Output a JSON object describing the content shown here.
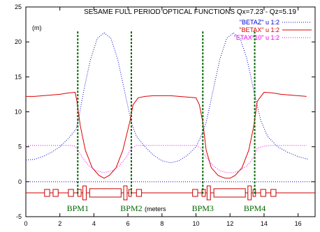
{
  "chart_data": {
    "type": "line",
    "title": "SESAME FULL PERIOD OPTICAL FUNCTIONS Qx=7.23 - Qz=5.19",
    "ylabel": "(m)",
    "xlabel": "(meters",
    "xlim": [
      0,
      17
    ],
    "ylim": [
      -5,
      25
    ],
    "x_ticks": [
      0,
      2,
      4,
      6,
      8,
      10,
      12,
      14,
      16
    ],
    "y_ticks": [
      -5,
      0,
      5,
      10,
      15,
      20,
      25
    ],
    "grid": false,
    "legend_position": "top-right",
    "series": [
      {
        "name": "\"BETAZ\" u 1:2",
        "color": "#0000cc",
        "style": "dotted",
        "x": [
          0,
          0.5,
          1.0,
          1.5,
          2.0,
          2.5,
          2.95,
          3.1,
          3.4,
          3.8,
          4.2,
          4.6,
          5.0,
          5.4,
          5.8,
          6.2,
          6.5,
          7.0,
          7.5,
          8.0,
          8.5,
          9.0,
          9.5,
          10.0,
          10.3,
          10.6,
          11.0,
          11.4,
          11.8,
          12.2,
          12.6,
          13.0,
          13.4,
          13.8,
          14.2,
          14.8,
          15.4,
          16.0,
          16.6
        ],
        "y": [
          3.1,
          3.2,
          3.6,
          4.2,
          5.0,
          6.2,
          7.5,
          9.0,
          13.0,
          17.5,
          20.5,
          21.3,
          20.5,
          17.5,
          13.0,
          8.5,
          6.5,
          5.0,
          3.8,
          3.0,
          2.7,
          3.0,
          3.8,
          5.0,
          6.5,
          8.5,
          13.0,
          17.5,
          20.5,
          21.3,
          20.5,
          17.5,
          13.0,
          8.8,
          6.5,
          5.0,
          4.2,
          3.6,
          3.2
        ]
      },
      {
        "name": "\"BETAX\" u 1:2",
        "color": "#dd0000",
        "style": "solid",
        "x": [
          0,
          0.5,
          1.0,
          1.5,
          2.0,
          2.5,
          2.9,
          3.0,
          3.2,
          3.5,
          3.9,
          4.3,
          4.6,
          4.9,
          5.3,
          5.7,
          6.1,
          6.3,
          6.6,
          7.0,
          7.5,
          8.0,
          8.5,
          9.0,
          9.5,
          10.0,
          10.2,
          10.4,
          10.6,
          10.9,
          11.3,
          11.7,
          12.0,
          12.3,
          12.7,
          13.1,
          13.4,
          13.6,
          14.0,
          14.5,
          15.0,
          15.5,
          16.0,
          16.5
        ],
        "y": [
          12.2,
          12.2,
          12.3,
          12.4,
          12.5,
          12.7,
          12.8,
          11.5,
          8.0,
          4.5,
          2.0,
          0.9,
          0.5,
          0.9,
          2.0,
          4.5,
          8.5,
          11.0,
          12.0,
          12.2,
          12.3,
          12.3,
          12.3,
          12.2,
          12.1,
          12.0,
          11.0,
          8.5,
          4.5,
          2.0,
          0.9,
          0.5,
          0.5,
          0.9,
          2.0,
          4.5,
          8.0,
          11.5,
          12.8,
          12.7,
          12.5,
          12.4,
          12.3,
          12.2
        ]
      },
      {
        "name": "\"ETAX*10\" u 1:2",
        "color": "#ee00ee",
        "style": "dotted",
        "x": [
          0,
          0.5,
          1.0,
          1.5,
          2.0,
          2.5,
          2.9,
          3.0,
          3.3,
          3.7,
          4.1,
          4.6,
          5.1,
          5.5,
          5.9,
          6.2,
          6.5,
          7.0,
          7.5,
          8.0,
          8.5,
          9.0,
          9.5,
          10.0,
          10.3,
          10.6,
          11.0,
          11.4,
          11.8,
          12.2,
          12.6,
          13.0,
          13.4,
          13.6,
          14.0,
          14.5,
          15.0,
          15.5,
          16.0,
          16.5
        ],
        "y": [
          5.2,
          5.2,
          5.2,
          5.2,
          5.2,
          5.2,
          5.1,
          4.8,
          3.5,
          2.3,
          1.6,
          1.3,
          1.6,
          2.3,
          3.5,
          4.8,
          5.2,
          5.2,
          5.2,
          5.2,
          5.2,
          5.2,
          5.2,
          5.2,
          4.8,
          3.5,
          2.3,
          1.6,
          1.3,
          1.3,
          1.6,
          2.3,
          3.5,
          4.8,
          5.1,
          5.2,
          5.2,
          5.2,
          5.2,
          5.2
        ]
      }
    ],
    "bpm_markers": [
      {
        "label": "BPM1",
        "x": 3.05
      },
      {
        "label": "BPM2",
        "x": 6.2
      },
      {
        "label": "BPM3",
        "x": 10.4
      },
      {
        "label": "BPM4",
        "x": 13.45
      }
    ],
    "bpm_color": "#006600",
    "lattice_color": "#cc0000",
    "lattice_y": -1.6,
    "lattice_elements": [
      {
        "x0": 1.1,
        "x1": 1.4,
        "h": 0.5
      },
      {
        "x0": 1.6,
        "x1": 1.9,
        "h": 0.5
      },
      {
        "x0": 2.5,
        "x1": 2.8,
        "h": 0.5
      },
      {
        "x0": 3.05,
        "x1": 3.25,
        "h": 0.5
      },
      {
        "x0": 3.35,
        "x1": 3.55,
        "h": 1.0
      },
      {
        "x0": 3.75,
        "x1": 5.6,
        "h": 0.6
      },
      {
        "x0": 5.75,
        "x1": 5.95,
        "h": 1.0
      },
      {
        "x0": 6.05,
        "x1": 6.2,
        "h": 0.5
      },
      {
        "x0": 6.5,
        "x1": 6.8,
        "h": 0.5
      },
      {
        "x0": 9.8,
        "x1": 10.1,
        "h": 0.5
      },
      {
        "x0": 10.35,
        "x1": 10.55,
        "h": 0.5
      },
      {
        "x0": 10.65,
        "x1": 10.85,
        "h": 1.0
      },
      {
        "x0": 11.05,
        "x1": 12.9,
        "h": 0.6
      },
      {
        "x0": 13.05,
        "x1": 13.25,
        "h": 1.0
      },
      {
        "x0": 13.35,
        "x1": 13.5,
        "h": 0.5
      },
      {
        "x0": 13.8,
        "x1": 14.1,
        "h": 0.5
      },
      {
        "x0": 14.4,
        "x1": 14.7,
        "h": 0.5
      }
    ]
  }
}
